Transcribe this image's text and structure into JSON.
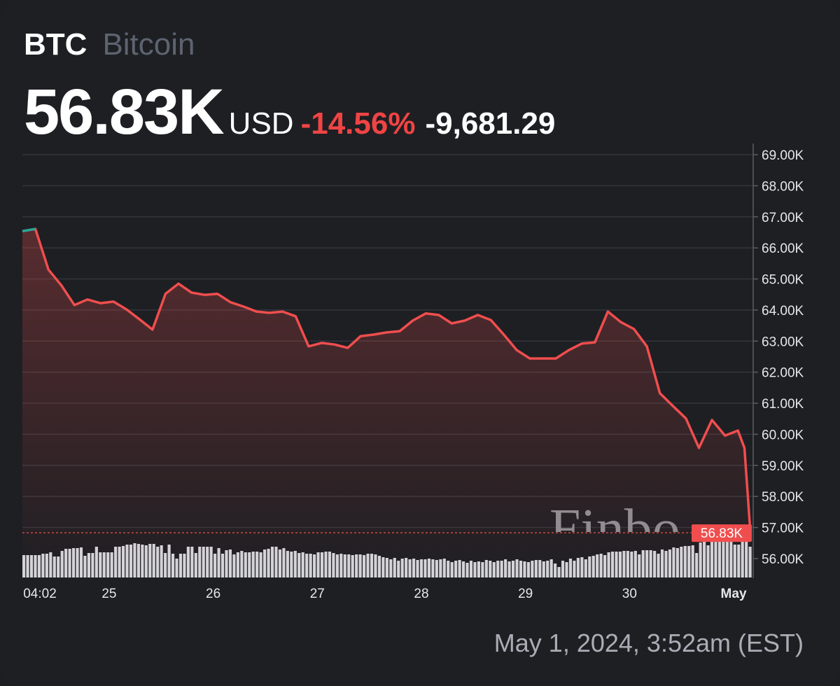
{
  "header": {
    "symbol": "BTC",
    "name": "Bitcoin",
    "price": "56.83K",
    "currency": "USD",
    "change_pct": "-14.56%",
    "change_abs": "-9,681.29"
  },
  "timestamp": "May 1, 2024, 3:52am (EST)",
  "watermark": "Finbo",
  "colors": {
    "line": "#f04e4e",
    "up_segment": "#26a69a",
    "volume": "#d4d5d9",
    "label_bg": "#f04e4e",
    "background": "#1e1f23"
  },
  "chart_data": {
    "type": "line",
    "title": "",
    "xlabel": "",
    "ylabel": "",
    "ylim": [
      55.5,
      69.3
    ],
    "y_ticks": [
      "69.00K",
      "68.00K",
      "67.00K",
      "66.00K",
      "65.00K",
      "64.00K",
      "63.00K",
      "62.00K",
      "61.00K",
      "60.00K",
      "59.00K",
      "58.00K",
      "57.00K",
      "56.00K"
    ],
    "y_tick_values": [
      69,
      68,
      67,
      66,
      65,
      64,
      63,
      62,
      61,
      60,
      59,
      58,
      57,
      56
    ],
    "x_ticks": [
      {
        "label": "04:02",
        "t": "2024-04-24T04:02"
      },
      {
        "label": "25",
        "t": "2024-04-25T00:00"
      },
      {
        "label": "26",
        "t": "2024-04-26T00:00"
      },
      {
        "label": "27",
        "t": "2024-04-27T00:00"
      },
      {
        "label": "28",
        "t": "2024-04-28T00:00"
      },
      {
        "label": "29",
        "t": "2024-04-29T00:00"
      },
      {
        "label": "30",
        "t": "2024-04-30T00:00"
      },
      {
        "label": "May",
        "t": "2024-05-01T00:00"
      }
    ],
    "grid": true,
    "last_price_label": "56.83K",
    "last_price": 56.83,
    "series": [
      {
        "unit": "K USD",
        "points": [
          [
            "2024-04-24T04:00",
            66.54
          ],
          [
            "2024-04-24T07:00",
            66.61
          ],
          [
            "2024-04-24T10:00",
            65.3
          ],
          [
            "2024-04-24T13:00",
            64.79
          ],
          [
            "2024-04-24T16:00",
            64.16
          ],
          [
            "2024-04-24T19:00",
            64.34
          ],
          [
            "2024-04-24T22:00",
            64.22
          ],
          [
            "2024-04-25T01:00",
            64.27
          ],
          [
            "2024-04-25T04:00",
            64.02
          ],
          [
            "2024-04-25T07:00",
            63.7
          ],
          [
            "2024-04-25T10:00",
            63.37
          ],
          [
            "2024-04-25T13:00",
            64.52
          ],
          [
            "2024-04-25T16:00",
            64.85
          ],
          [
            "2024-04-25T19:00",
            64.56
          ],
          [
            "2024-04-25T22:00",
            64.49
          ],
          [
            "2024-04-26T01:00",
            64.52
          ],
          [
            "2024-04-26T04:00",
            64.25
          ],
          [
            "2024-04-26T07:00",
            64.11
          ],
          [
            "2024-04-26T10:00",
            63.95
          ],
          [
            "2024-04-26T13:00",
            63.91
          ],
          [
            "2024-04-26T16:00",
            63.95
          ],
          [
            "2024-04-26T19:00",
            63.8
          ],
          [
            "2024-04-26T22:00",
            62.83
          ],
          [
            "2024-04-27T01:00",
            62.94
          ],
          [
            "2024-04-27T04:00",
            62.89
          ],
          [
            "2024-04-27T07:00",
            62.78
          ],
          [
            "2024-04-27T10:00",
            63.16
          ],
          [
            "2024-04-27T13:00",
            63.21
          ],
          [
            "2024-04-27T16:00",
            63.28
          ],
          [
            "2024-04-27T19:00",
            63.32
          ],
          [
            "2024-04-27T22:00",
            63.66
          ],
          [
            "2024-04-28T01:00",
            63.89
          ],
          [
            "2024-04-28T04:00",
            63.84
          ],
          [
            "2024-04-28T07:00",
            63.57
          ],
          [
            "2024-04-28T10:00",
            63.66
          ],
          [
            "2024-04-28T13:00",
            63.84
          ],
          [
            "2024-04-28T16:00",
            63.68
          ],
          [
            "2024-04-28T19:00",
            63.21
          ],
          [
            "2024-04-28T22:00",
            62.71
          ],
          [
            "2024-04-29T01:00",
            62.44
          ],
          [
            "2024-04-29T04:00",
            62.44
          ],
          [
            "2024-04-29T07:00",
            62.44
          ],
          [
            "2024-04-29T10:00",
            62.71
          ],
          [
            "2024-04-29T13:00",
            62.92
          ],
          [
            "2024-04-29T16:00",
            62.96
          ],
          [
            "2024-04-29T19:00",
            63.95
          ],
          [
            "2024-04-29T22:00",
            63.61
          ],
          [
            "2024-04-30T01:00",
            63.39
          ],
          [
            "2024-04-30T04:00",
            62.83
          ],
          [
            "2024-04-30T07:00",
            61.32
          ],
          [
            "2024-04-30T10:00",
            60.91
          ],
          [
            "2024-04-30T13:00",
            60.51
          ],
          [
            "2024-04-30T16:00",
            59.56
          ],
          [
            "2024-04-30T19:00",
            60.46
          ],
          [
            "2024-04-30T22:00",
            59.96
          ],
          [
            "2024-05-01T01:00",
            60.12
          ],
          [
            "2024-05-01T02:30",
            59.56
          ],
          [
            "2024-05-01T03:52",
            56.83
          ]
        ]
      }
    ],
    "volume": [
      32,
      32,
      32,
      32,
      32,
      34,
      34,
      36,
      30,
      30,
      38,
      41,
      41,
      42,
      42,
      43,
      31,
      35,
      35,
      44,
      36,
      36,
      36,
      36,
      44,
      44,
      45,
      47,
      47,
      49,
      48,
      47,
      46,
      48,
      48,
      44,
      46,
      35,
      47,
      34,
      27,
      34,
      34,
      44,
      44,
      35,
      44,
      44,
      44,
      44,
      34,
      42,
      34,
      39,
      40,
      33,
      36,
      38,
      36,
      36,
      37,
      37,
      36,
      40,
      41,
      44,
      44,
      40,
      42,
      38,
      37,
      38,
      35,
      36,
      34,
      34,
      33,
      36,
      36,
      37,
      37,
      35,
      33,
      34,
      33,
      33,
      32,
      33,
      33,
      32,
      34,
      34,
      33,
      31,
      29,
      28,
      26,
      28,
      24,
      27,
      28,
      26,
      27,
      25,
      26,
      26,
      27,
      26,
      25,
      26,
      27,
      24,
      22,
      24,
      25,
      23,
      21,
      24,
      22,
      23,
      22,
      25,
      24,
      22,
      24,
      24,
      26,
      23,
      24,
      26,
      24,
      23,
      22,
      24,
      25,
      25,
      23,
      24,
      26,
      20,
      15,
      24,
      22,
      27,
      24,
      28,
      29,
      26,
      30,
      31,
      33,
      34,
      32,
      36,
      37,
      37,
      37,
      38,
      38,
      37,
      38,
      33,
      39,
      39,
      39,
      38,
      34,
      40,
      38,
      40,
      43,
      42,
      44,
      45,
      45,
      46,
      35,
      50,
      52,
      46,
      55,
      55,
      54,
      55,
      55,
      55,
      47,
      47,
      54,
      59,
      44
    ]
  }
}
